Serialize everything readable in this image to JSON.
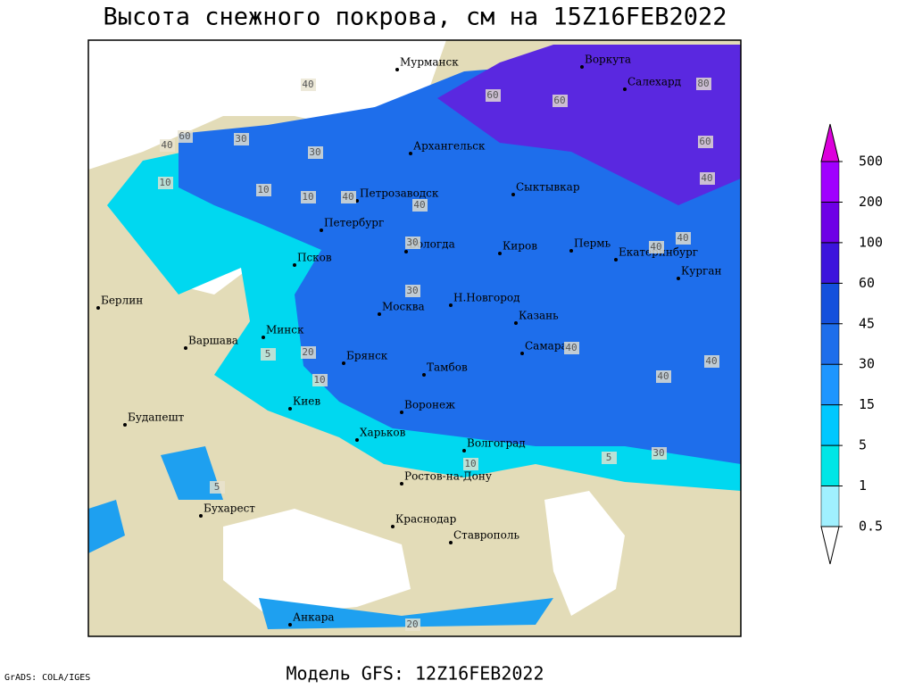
{
  "header": {
    "title": "Высота снежного покрова, см на 15Z16FEB2022"
  },
  "footer": {
    "model": "Модель GFS: 12Z16FEB2022",
    "credit": "GrADS: COLA/IGES"
  },
  "colorbar": {
    "levels": [
      0.5,
      1,
      5,
      15,
      30,
      45,
      60,
      100,
      200,
      500
    ],
    "colors": [
      "#ffffff",
      "#a0f0ff",
      "#00e6e6",
      "#00c8ff",
      "#1e96ff",
      "#1e6eeb",
      "#1450dc",
      "#3c14dc",
      "#6e00e6",
      "#a000ff",
      "#dc00dc"
    ]
  },
  "map": {
    "cities": [
      "Мурманск",
      "Воркута",
      "Салехард",
      "Архангельск",
      "Сыктывкар",
      "Петрозаводск",
      "Петербург",
      "Вологда",
      "Киров",
      "Пермь",
      "Екатеринбург",
      "Курган",
      "Псков",
      "Берлин",
      "Москва",
      "Н.Новгород",
      "Казань",
      "Минск",
      "Варшава",
      "Брянск",
      "Тамбов",
      "Самара",
      "Киев",
      "Воронеж",
      "Будапешт",
      "Харьков",
      "Волгоград",
      "Ростов-на-Дону",
      "Бухарест",
      "Краснодар",
      "Ставрополь",
      "Анкара"
    ],
    "contour_labels": [
      "40",
      "60",
      "40",
      "30",
      "10",
      "10",
      "40",
      "30",
      "30",
      "40",
      "60",
      "60",
      "80",
      "60",
      "40",
      "40",
      "40",
      "40",
      "30",
      "40",
      "40",
      "20",
      "10",
      "5",
      "5",
      "10",
      "30",
      "20",
      "10",
      "5"
    ]
  }
}
